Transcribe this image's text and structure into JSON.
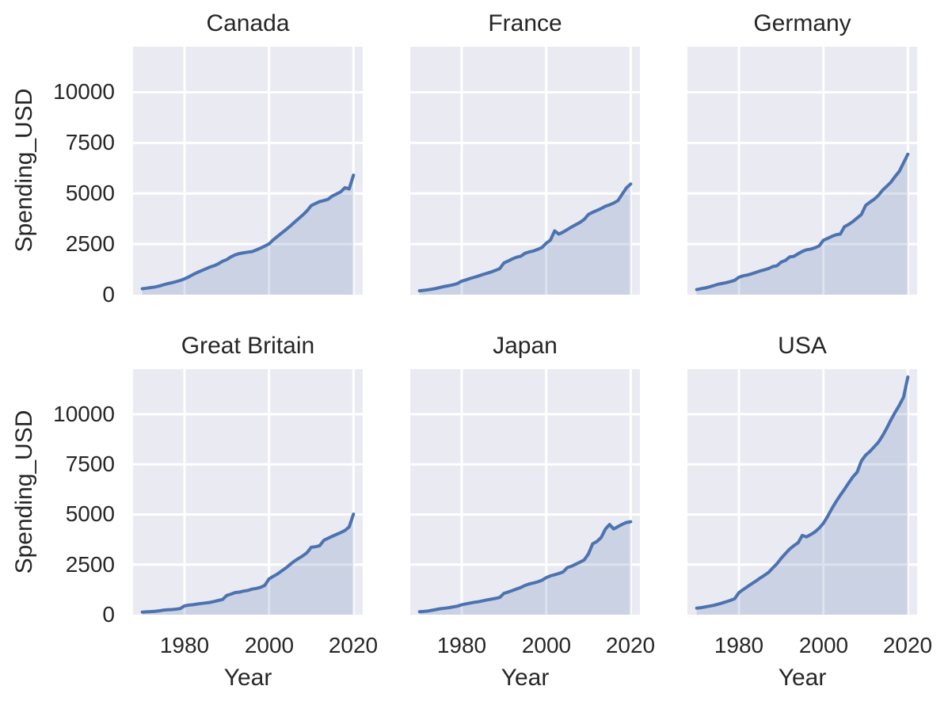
{
  "chart_data": {
    "type": "area",
    "title": "",
    "xlabel": "Year",
    "ylabel": "Spending_USD",
    "x_ticks": [
      1980,
      2000,
      2020
    ],
    "y_ticks": [
      0,
      2500,
      5000,
      7500,
      10000
    ],
    "xlim": [
      1967.8,
      2022.2
    ],
    "ylim": [
      0,
      12250
    ],
    "grid": true,
    "legend": "none",
    "panel_bg": "#EAEAF2",
    "grid_color": "#FFFFFF",
    "line_color": "#4C72B0",
    "fill_color": "rgba(76,114,176,0.2)",
    "years": [
      1970,
      1971,
      1972,
      1973,
      1974,
      1975,
      1976,
      1977,
      1978,
      1979,
      1980,
      1981,
      1982,
      1983,
      1984,
      1985,
      1986,
      1987,
      1988,
      1989,
      1990,
      1991,
      1992,
      1993,
      1994,
      1995,
      1996,
      1997,
      1998,
      1999,
      2000,
      2001,
      2002,
      2003,
      2004,
      2005,
      2006,
      2007,
      2008,
      2009,
      2010,
      2011,
      2012,
      2013,
      2014,
      2015,
      2016,
      2017,
      2018,
      2019,
      2020
    ],
    "facets": [
      {
        "country": "Canada",
        "values": [
          294,
          322,
          352,
          381,
          428,
          490,
          543,
          590,
          646,
          705,
          784,
          880,
          996,
          1096,
          1185,
          1277,
          1361,
          1434,
          1528,
          1651,
          1735,
          1870,
          1970,
          2030,
          2070,
          2100,
          2130,
          2210,
          2300,
          2400,
          2509,
          2708,
          2879,
          3044,
          3212,
          3385,
          3571,
          3759,
          3936,
          4140,
          4404,
          4503,
          4598,
          4650,
          4716,
          4875,
          4975,
          5082,
          5287,
          5230,
          5905
        ]
      },
      {
        "country": "France",
        "values": [
          192,
          216,
          243,
          275,
          312,
          365,
          409,
          446,
          494,
          551,
          668,
          730,
          804,
          862,
          927,
          998,
          1061,
          1124,
          1203,
          1289,
          1568,
          1668,
          1768,
          1852,
          1903,
          2046,
          2113,
          2160,
          2237,
          2331,
          2543,
          2696,
          3150,
          2995,
          3090,
          3216,
          3341,
          3459,
          3570,
          3717,
          3965,
          4070,
          4160,
          4254,
          4367,
          4437,
          4530,
          4650,
          4965,
          5274,
          5468
        ]
      },
      {
        "country": "Germany",
        "values": [
          252,
          297,
          334,
          384,
          446,
          514,
          552,
          595,
          650,
          711,
          860,
          932,
          970,
          1029,
          1100,
          1169,
          1225,
          1291,
          1388,
          1430,
          1609,
          1690,
          1862,
          1894,
          2021,
          2138,
          2221,
          2249,
          2317,
          2410,
          2687,
          2784,
          2880,
          2958,
          2993,
          3363,
          3471,
          3616,
          3789,
          3961,
          4409,
          4566,
          4707,
          4899,
          5159,
          5353,
          5558,
          5845,
          6098,
          6518,
          6939
        ]
      },
      {
        "country": "Great Britain",
        "values": [
          130,
          141,
          155,
          170,
          192,
          228,
          247,
          258,
          278,
          310,
          444,
          480,
          497,
          534,
          560,
          585,
          614,
          658,
          710,
          760,
          960,
          1029,
          1108,
          1126,
          1176,
          1210,
          1275,
          1310,
          1366,
          1461,
          1785,
          1911,
          2030,
          2183,
          2333,
          2506,
          2672,
          2809,
          2938,
          3093,
          3362,
          3391,
          3442,
          3713,
          3818,
          3913,
          4007,
          4096,
          4205,
          4383,
          5019
        ]
      },
      {
        "country": "Japan",
        "values": [
          150,
          162,
          183,
          222,
          260,
          299,
          324,
          351,
          390,
          428,
          497,
          543,
          582,
          622,
          650,
          695,
          737,
          775,
          815,
          860,
          1066,
          1132,
          1205,
          1284,
          1360,
          1462,
          1532,
          1584,
          1640,
          1720,
          1850,
          1935,
          1990,
          2055,
          2135,
          2350,
          2420,
          2520,
          2620,
          2730,
          3035,
          3538,
          3650,
          3850,
          4265,
          4502,
          4280,
          4400,
          4510,
          4600,
          4640
        ]
      },
      {
        "country": "USA",
        "values": [
          327,
          351,
          388,
          425,
          467,
          521,
          582,
          649,
          717,
          797,
          1102,
          1254,
          1400,
          1539,
          1675,
          1825,
          1961,
          2110,
          2331,
          2539,
          2809,
          3047,
          3273,
          3442,
          3589,
          3954,
          3880,
          4000,
          4131,
          4316,
          4559,
          4904,
          5288,
          5634,
          5958,
          6257,
          6574,
          6879,
          7113,
          7662,
          7960,
          8140,
          8367,
          8599,
          8923,
          9300,
          9717,
          10100,
          10451,
          10855,
          11859
        ]
      }
    ]
  }
}
